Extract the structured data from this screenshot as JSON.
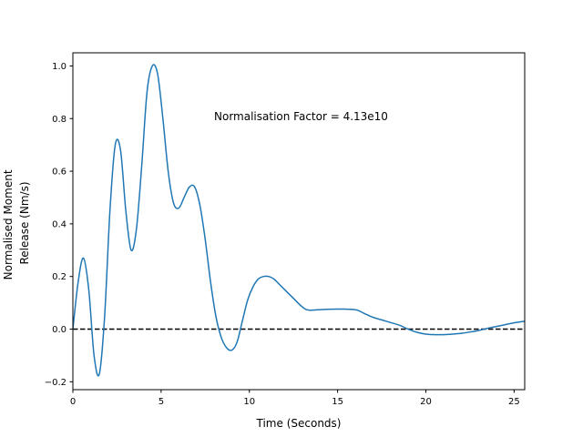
{
  "chart_data": {
    "type": "line",
    "xlabel": "Time (Seconds)",
    "ylabel_lines": [
      "Normalised Moment",
      "Release (Nm/s)"
    ],
    "xlim": [
      0,
      25.6
    ],
    "ylim": [
      -0.23,
      1.05
    ],
    "xticks": [
      0,
      5,
      10,
      15,
      20,
      25
    ],
    "yticks": [
      -0.2,
      0.0,
      0.2,
      0.4,
      0.6,
      0.8,
      1.0
    ],
    "xtick_labels": [
      "0",
      "5",
      "10",
      "15",
      "20",
      "25"
    ],
    "ytick_labels": [
      "−0.2",
      "0.0",
      "0.2",
      "0.4",
      "0.6",
      "0.8",
      "1.0"
    ],
    "annotation": "Normalisation Factor = 4.13e10",
    "grid": false,
    "line_color": "#1f77b4",
    "reference_line": {
      "y": 0,
      "style": "dashed",
      "color": "#000000"
    },
    "series": [
      {
        "x": [
          0,
          0.3,
          0.6,
          0.9,
          1.2,
          1.5,
          1.8,
          2.1,
          2.4,
          2.7,
          3.0,
          3.3,
          3.6,
          3.9,
          4.2,
          4.5,
          4.8,
          5.1,
          5.4,
          5.7,
          6.0,
          6.3,
          6.6,
          6.9,
          7.2,
          7.5,
          7.8,
          8.1,
          8.4,
          8.7,
          9.0,
          9.3,
          9.6,
          9.9,
          10.2,
          10.5,
          10.8,
          11.1,
          11.4,
          11.7,
          12.0,
          12.3,
          12.6,
          12.9,
          13.2,
          13.5,
          14.0,
          15.0,
          16.0,
          16.5,
          17.0,
          17.5,
          18.0,
          18.5,
          19.0,
          19.5,
          20.0,
          20.5,
          21.0,
          21.5,
          22.0,
          22.5,
          23.0,
          23.5,
          24.0,
          24.5,
          25.0,
          25.6
        ],
        "y": [
          0.0,
          0.18,
          0.27,
          0.15,
          -0.1,
          -0.17,
          0.05,
          0.45,
          0.7,
          0.68,
          0.45,
          0.3,
          0.38,
          0.62,
          0.9,
          1.0,
          0.97,
          0.8,
          0.6,
          0.48,
          0.46,
          0.5,
          0.54,
          0.54,
          0.47,
          0.34,
          0.18,
          0.05,
          -0.03,
          -0.07,
          -0.08,
          -0.05,
          0.03,
          0.11,
          0.16,
          0.19,
          0.2,
          0.2,
          0.19,
          0.17,
          0.15,
          0.13,
          0.11,
          0.09,
          0.075,
          0.072,
          0.074,
          0.076,
          0.074,
          0.06,
          0.045,
          0.035,
          0.025,
          0.015,
          0.0,
          -0.012,
          -0.019,
          -0.021,
          -0.021,
          -0.019,
          -0.016,
          -0.011,
          -0.005,
          0.003,
          0.01,
          0.017,
          0.024,
          0.03
        ]
      }
    ]
  }
}
